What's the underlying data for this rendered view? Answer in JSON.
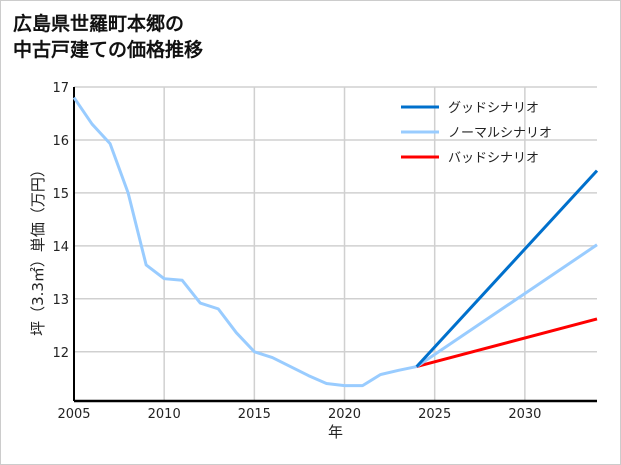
{
  "chart_data": {
    "type": "line",
    "title_lines": [
      "広島県世羅町本郷の",
      "中古戸建ての価格推移"
    ],
    "xlabel": "年",
    "ylabel": "坪（3.3㎡）単価（万円）",
    "xlim": [
      2005,
      2034
    ],
    "ylim": [
      11.07,
      17
    ],
    "xticks": [
      2005,
      2010,
      2015,
      2020,
      2025,
      2030
    ],
    "yticks": [
      12,
      13,
      14,
      15,
      16,
      17
    ],
    "grid": true,
    "legend_position": "top-right",
    "series": [
      {
        "name": "ノーマルシナリオ",
        "color": "#99ccff",
        "x": [
          2005,
          2006,
          2007,
          2008,
          2009,
          2010,
          2011,
          2012,
          2013,
          2014,
          2015,
          2016,
          2017,
          2018,
          2019,
          2020,
          2021,
          2022,
          2023,
          2024
        ],
        "y": [
          16.8,
          16.3,
          15.93,
          15.0,
          13.64,
          13.38,
          13.35,
          12.92,
          12.81,
          12.36,
          12.0,
          11.89,
          11.72,
          11.55,
          11.4,
          11.36,
          11.36,
          11.57,
          11.65,
          11.72
        ]
      },
      {
        "name": "グッドシナリオ",
        "color": "#0070cc",
        "x": [
          2024,
          2034
        ],
        "y": [
          11.72,
          15.42
        ]
      },
      {
        "name": "ノーマルシナリオ",
        "color": "#99ccff",
        "x": [
          2024,
          2034
        ],
        "y": [
          11.72,
          14.02
        ]
      },
      {
        "name": "バッドシナリオ",
        "color": "#ff0000",
        "x": [
          2024,
          2034
        ],
        "y": [
          11.72,
          12.62
        ]
      }
    ],
    "legend": [
      {
        "label": "グッドシナリオ",
        "color": "#0070cc"
      },
      {
        "label": "ノーマルシナリオ",
        "color": "#99ccff"
      },
      {
        "label": "バッドシナリオ",
        "color": "#ff0000"
      }
    ]
  }
}
